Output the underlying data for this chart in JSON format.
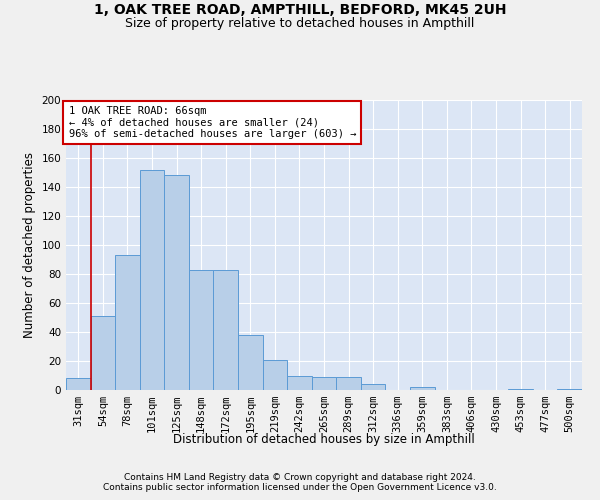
{
  "title1": "1, OAK TREE ROAD, AMPTHILL, BEDFORD, MK45 2UH",
  "title2": "Size of property relative to detached houses in Ampthill",
  "xlabel": "Distribution of detached houses by size in Ampthill",
  "ylabel": "Number of detached properties",
  "footer1": "Contains HM Land Registry data © Crown copyright and database right 2024.",
  "footer2": "Contains public sector information licensed under the Open Government Licence v3.0.",
  "annotation_line1": "1 OAK TREE ROAD: 66sqm",
  "annotation_line2": "← 4% of detached houses are smaller (24)",
  "annotation_line3": "96% of semi-detached houses are larger (603) →",
  "bar_values": [
    8,
    51,
    93,
    152,
    148,
    83,
    83,
    38,
    21,
    10,
    9,
    9,
    4,
    0,
    2,
    0,
    0,
    0,
    1,
    0,
    1
  ],
  "bin_labels": [
    "31sqm",
    "54sqm",
    "78sqm",
    "101sqm",
    "125sqm",
    "148sqm",
    "172sqm",
    "195sqm",
    "219sqm",
    "242sqm",
    "265sqm",
    "289sqm",
    "312sqm",
    "336sqm",
    "359sqm",
    "383sqm",
    "406sqm",
    "430sqm",
    "453sqm",
    "477sqm",
    "500sqm"
  ],
  "bar_color": "#b8cfe8",
  "bar_edge_color": "#5b9bd5",
  "background_color": "#dce6f5",
  "grid_color": "#ffffff",
  "fig_background": "#f0f0f0",
  "annotation_box_color": "#ffffff",
  "annotation_box_edge": "#cc0000",
  "vline_color": "#cc0000",
  "vline_x_index": 1,
  "ylim": [
    0,
    200
  ],
  "yticks": [
    0,
    20,
    40,
    60,
    80,
    100,
    120,
    140,
    160,
    180,
    200
  ],
  "title_fontsize": 10,
  "subtitle_fontsize": 9,
  "axis_label_fontsize": 8.5,
  "tick_fontsize": 7.5,
  "annotation_fontsize": 7.5,
  "footer_fontsize": 6.5
}
